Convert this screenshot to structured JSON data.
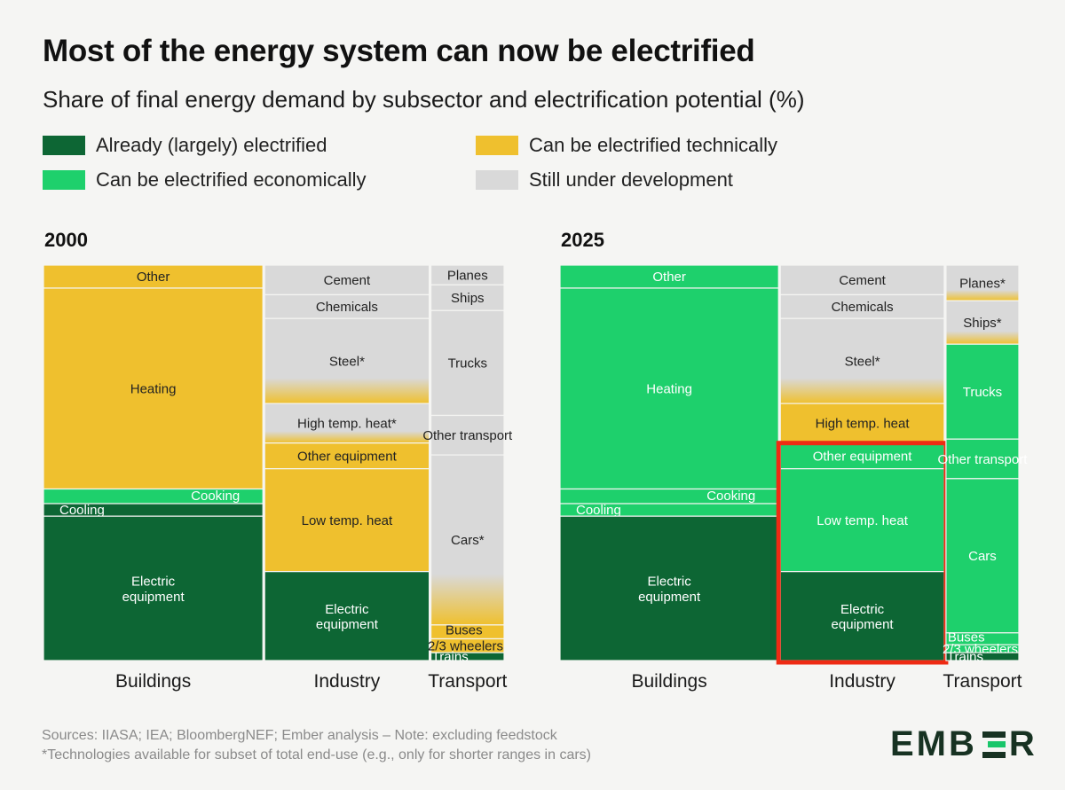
{
  "header": {
    "title": "Most of the energy system can now be electrified",
    "subtitle": "Share of final energy demand by subsector and electrification potential (%)"
  },
  "legend": [
    {
      "key": "already",
      "label": "Already (largely) electrified",
      "color": "#0d6634"
    },
    {
      "key": "economic",
      "label": "Can be electrified economically",
      "color": "#1ed06c"
    },
    {
      "key": "technical",
      "label": "Can be electrified technically",
      "color": "#efc02e"
    },
    {
      "key": "development",
      "label": "Still under development",
      "color": "#d9d9d9"
    }
  ],
  "footer": {
    "source": "Sources: IIASA; IEA; BloombergNEF; Ember analysis – Note: excluding feedstock",
    "note": "*Technologies available for subset of total end-use (e.g., only for shorter ranges in cars)",
    "logo_left": "EMB",
    "logo_right": "R"
  },
  "chart_data": [
    {
      "type": "marimekko",
      "title": "2000",
      "sectors": [
        {
          "name": "Buildings",
          "share": 48,
          "segments": [
            {
              "label": "Other",
              "share": 5.5,
              "category": "technical"
            },
            {
              "label": "Heating",
              "share": 48,
              "category": "technical"
            },
            {
              "label": "Cooking",
              "share": 3.5,
              "category": "economic"
            },
            {
              "label": "Cooling",
              "share": 3,
              "category": "already"
            },
            {
              "label": "Electric equipment",
              "share": 34.5,
              "category": "already"
            }
          ]
        },
        {
          "name": "Industry",
          "share": 36,
          "segments": [
            {
              "label": "Cement",
              "share": 7.5,
              "category": "development"
            },
            {
              "label": "Chemicals",
              "share": 6,
              "category": "development"
            },
            {
              "label": "Steel*",
              "share": 21.5,
              "category": "development",
              "fade_to": "technical"
            },
            {
              "label": "High temp. heat*",
              "share": 10,
              "category": "development",
              "fade_to": "technical"
            },
            {
              "label": "Other equipment",
              "share": 6.5,
              "category": "technical"
            },
            {
              "label": "Low temp. heat",
              "share": 26,
              "category": "technical"
            },
            {
              "label": "Electric equipment",
              "share": 22.5,
              "category": "already"
            }
          ]
        },
        {
          "name": "Transport",
          "share": 16,
          "segments": [
            {
              "label": "Planes",
              "share": 5,
              "category": "development"
            },
            {
              "label": "Ships",
              "share": 6.5,
              "category": "development"
            },
            {
              "label": "Trucks",
              "share": 26.5,
              "category": "development"
            },
            {
              "label": "Other transport",
              "share": 10,
              "category": "development"
            },
            {
              "label": "Cars*",
              "share": 43,
              "category": "development",
              "fade_to": "technical"
            },
            {
              "label": "Buses",
              "share": 3.5,
              "category": "technical"
            },
            {
              "label": "2/3 wheelers",
              "share": 3.5,
              "category": "technical"
            },
            {
              "label": "Trains",
              "share": 2,
              "category": "already"
            }
          ]
        }
      ]
    },
    {
      "type": "marimekko",
      "title": "2025",
      "sectors": [
        {
          "name": "Buildings",
          "share": 48,
          "segments": [
            {
              "label": "Other",
              "share": 5.5,
              "category": "economic"
            },
            {
              "label": "Heating",
              "share": 48,
              "category": "economic"
            },
            {
              "label": "Cooking",
              "share": 3.5,
              "category": "economic"
            },
            {
              "label": "Cooling",
              "share": 3,
              "category": "economic"
            },
            {
              "label": "Electric equipment",
              "share": 34.5,
              "category": "already"
            }
          ]
        },
        {
          "name": "Industry",
          "share": 36,
          "segments": [
            {
              "label": "Cement",
              "share": 7.5,
              "category": "development"
            },
            {
              "label": "Chemicals",
              "share": 6,
              "category": "development"
            },
            {
              "label": "Steel*",
              "share": 21.5,
              "category": "development",
              "fade_to": "technical"
            },
            {
              "label": "High temp. heat",
              "share": 10,
              "category": "technical"
            },
            {
              "label": "Other equipment",
              "share": 6.5,
              "category": "economic"
            },
            {
              "label": "Low temp. heat",
              "share": 26,
              "category": "economic"
            },
            {
              "label": "Electric equipment",
              "share": 22.5,
              "category": "already"
            }
          ],
          "highlight": [
            "Other equipment",
            "Low temp. heat",
            "Electric equipment"
          ]
        },
        {
          "name": "Transport",
          "share": 16,
          "segments": [
            {
              "label": "Planes*",
              "share": 9,
              "category": "development",
              "fade_to": "technical"
            },
            {
              "label": "Ships*",
              "share": 11,
              "category": "development",
              "fade_to": "technical"
            },
            {
              "label": "Trucks",
              "share": 24,
              "category": "economic"
            },
            {
              "label": "Other transport",
              "share": 10,
              "category": "economic"
            },
            {
              "label": "Cars",
              "share": 39,
              "category": "economic"
            },
            {
              "label": "Buses",
              "share": 3,
              "category": "economic"
            },
            {
              "label": "2/3 wheelers",
              "share": 2,
              "category": "economic"
            },
            {
              "label": "Trains",
              "share": 2,
              "category": "already"
            }
          ]
        }
      ]
    }
  ]
}
